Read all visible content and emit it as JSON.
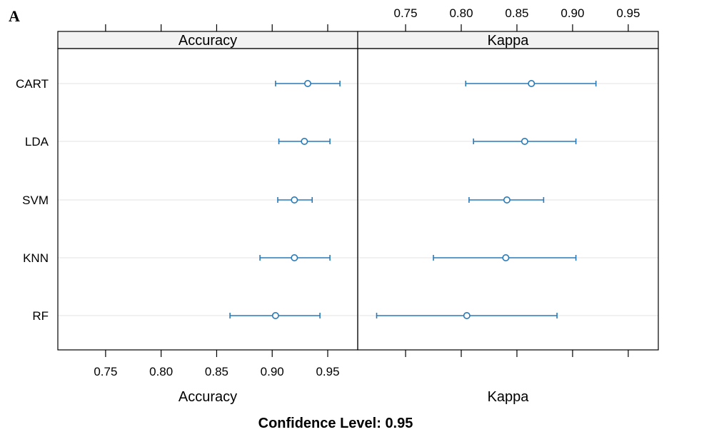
{
  "figure_label": "A",
  "footer": "Confidence Level: 0.95",
  "chart_data": {
    "type": "dotplot-errorbar",
    "categories": [
      "CART",
      "LDA",
      "SVM",
      "KNN",
      "RF"
    ],
    "x_range": [
      0.707,
      0.977
    ],
    "ticks": [
      0.75,
      0.8,
      0.85,
      0.9,
      0.95
    ],
    "tick_labels": [
      "0.75",
      "0.80",
      "0.85",
      "0.90",
      "0.95"
    ],
    "grid": true,
    "color": "#2a7ab8",
    "panels": [
      {
        "name": "Accuracy",
        "xlabel": "Accuracy",
        "points": [
          {
            "category": "CART",
            "estimate": 0.932,
            "lower": 0.903,
            "upper": 0.961
          },
          {
            "category": "LDA",
            "estimate": 0.929,
            "lower": 0.906,
            "upper": 0.952
          },
          {
            "category": "SVM",
            "estimate": 0.92,
            "lower": 0.905,
            "upper": 0.936
          },
          {
            "category": "KNN",
            "estimate": 0.92,
            "lower": 0.889,
            "upper": 0.952
          },
          {
            "category": "RF",
            "estimate": 0.903,
            "lower": 0.862,
            "upper": 0.943
          }
        ]
      },
      {
        "name": "Kappa",
        "xlabel": "Kappa",
        "points": [
          {
            "category": "CART",
            "estimate": 0.863,
            "lower": 0.804,
            "upper": 0.921
          },
          {
            "category": "LDA",
            "estimate": 0.857,
            "lower": 0.811,
            "upper": 0.903
          },
          {
            "category": "SVM",
            "estimate": 0.841,
            "lower": 0.807,
            "upper": 0.874
          },
          {
            "category": "KNN",
            "estimate": 0.84,
            "lower": 0.775,
            "upper": 0.903
          },
          {
            "category": "RF",
            "estimate": 0.805,
            "lower": 0.724,
            "upper": 0.886
          }
        ]
      }
    ]
  }
}
